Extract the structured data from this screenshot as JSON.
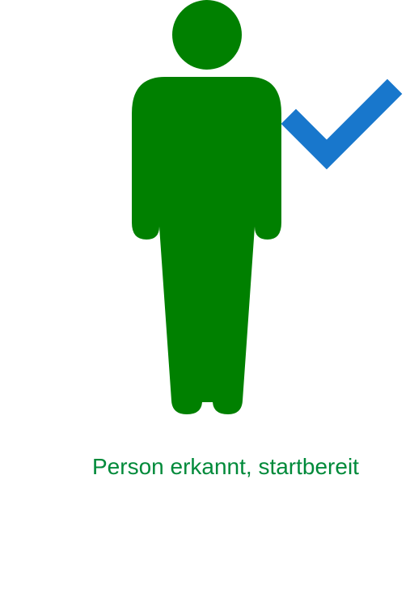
{
  "screen": {
    "status_text": "Person erkannt, startbereit"
  },
  "icons": {
    "person": "person-standing-icon",
    "check": "checkmark-icon"
  },
  "colors": {
    "person": "#008000",
    "check": "#1877cc",
    "status_text": "#008a3a",
    "background": "#ffffff"
  }
}
